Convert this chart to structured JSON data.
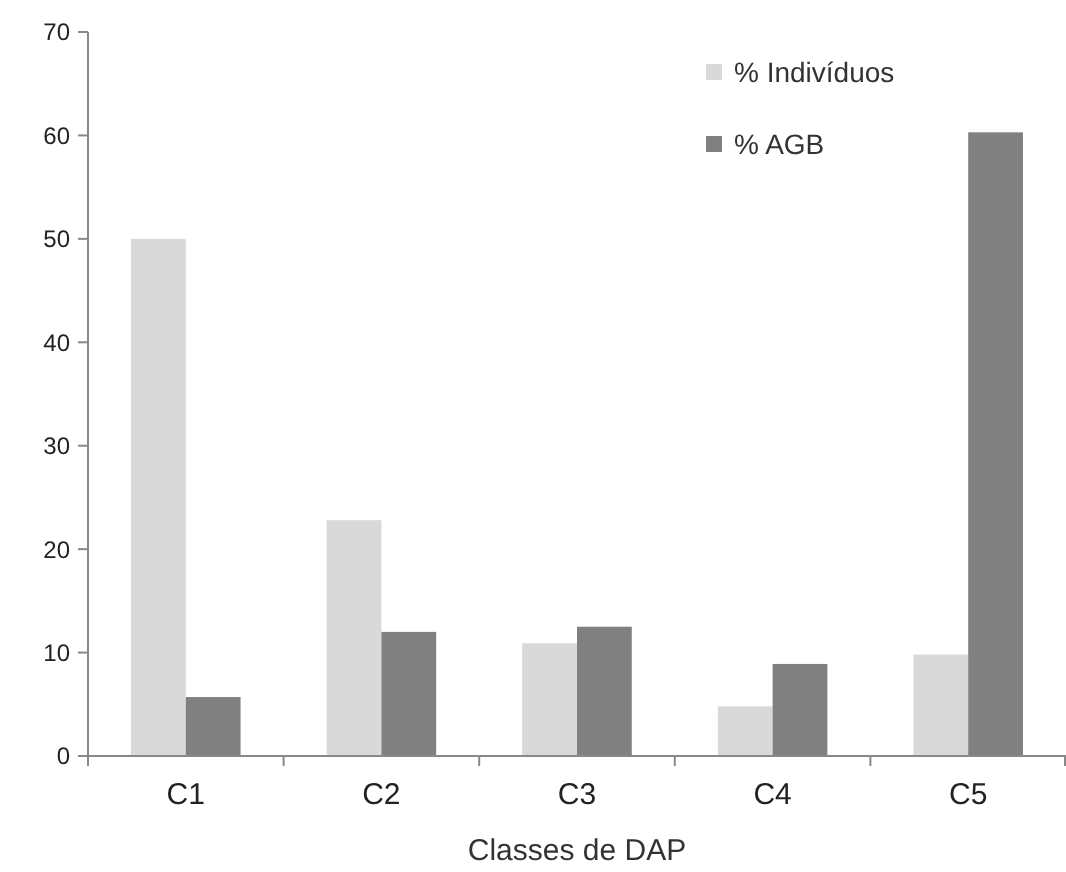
{
  "chart_data": {
    "type": "bar",
    "xlabel": "Classes de DAP",
    "categories": [
      "C1",
      "C2",
      "C3",
      "C4",
      "C5"
    ],
    "series": [
      {
        "name": "% Indivíduos",
        "color": "#d9d9d9",
        "values": [
          50,
          22.8,
          10.9,
          4.8,
          9.8
        ]
      },
      {
        "name": "% AGB",
        "color": "#808080",
        "values": [
          5.7,
          12,
          12.5,
          8.9,
          60.3
        ]
      }
    ],
    "ylim": [
      0,
      70
    ],
    "yticks": [
      0,
      10,
      20,
      30,
      40,
      50,
      60,
      70
    ],
    "grid": false,
    "legend": "top right"
  }
}
